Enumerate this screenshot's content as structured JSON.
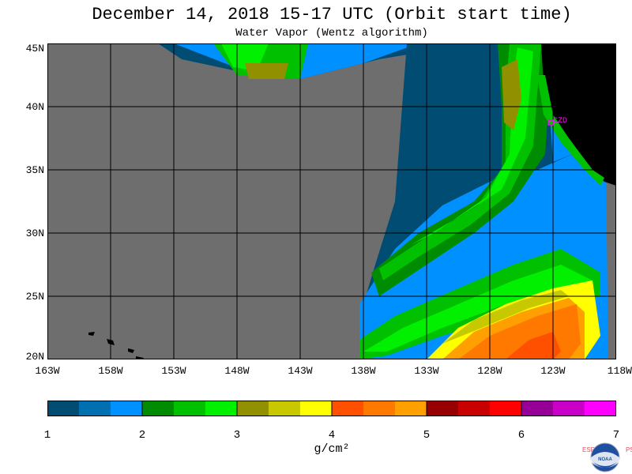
{
  "title": "December 14, 2018  15-17 UTC  (Orbit start time)",
  "subtitle": "Water Vapor (Wentz algorithm)",
  "map": {
    "lat_labels": [
      "45N",
      "40N",
      "35N",
      "30N",
      "25N",
      "20N"
    ],
    "lon_labels": [
      "163W",
      "158W",
      "153W",
      "148W",
      "143W",
      "138W",
      "133W",
      "128W",
      "123W",
      "118W"
    ],
    "station_label": "CZD",
    "lon_range": [
      -163,
      -118
    ],
    "lat_range": [
      20,
      45
    ],
    "colors": {
      "no_data": "#6e6e6e",
      "land": "#000000",
      "grid": "#000000",
      "station": "#ff00ff"
    }
  },
  "colorbar": {
    "tick_labels": [
      "1",
      "2",
      "3",
      "4",
      "5",
      "6",
      "7"
    ],
    "units": "g/cm²",
    "range": [
      1,
      7
    ],
    "colors": [
      "#004c72",
      "#0070b0",
      "#0090ff",
      "#008c00",
      "#00c000",
      "#00f000",
      "#909000",
      "#c8c800",
      "#ffff00",
      "#ff5000",
      "#ff7800",
      "#ffa000",
      "#960000",
      "#c80000",
      "#ff0000",
      "#960096",
      "#c800c8",
      "#ff00ff"
    ]
  },
  "logo": {
    "left_letters": "ESRL",
    "right_letters": "PSD",
    "name": "noaa-logo"
  }
}
